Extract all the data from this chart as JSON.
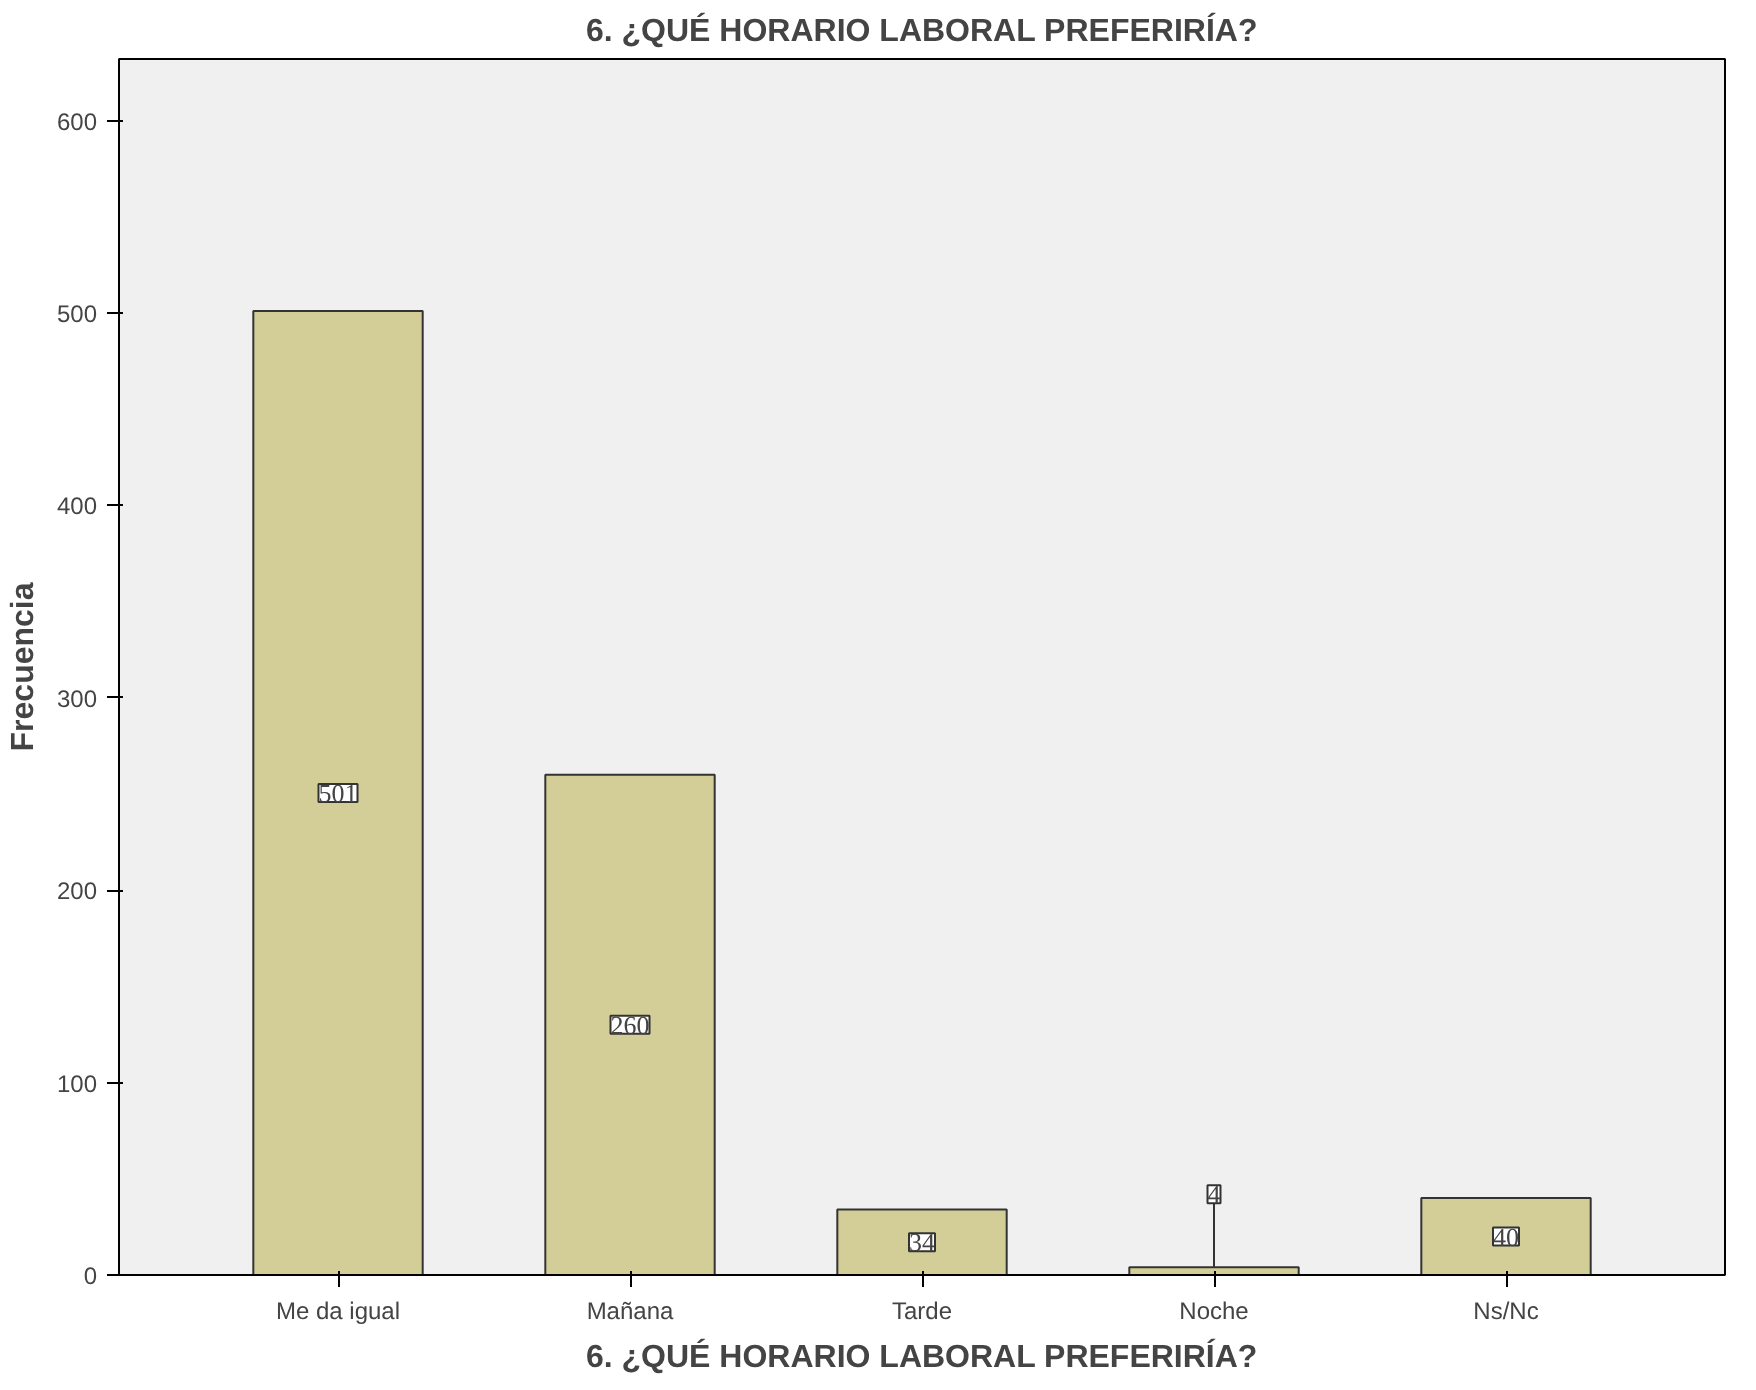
{
  "chart_data": {
    "type": "bar",
    "title": "6. ¿QUÉ HORARIO LABORAL PREFERIRÍA?",
    "xlabel": "6. ¿QUÉ HORARIO LABORAL PREFERIRÍA?",
    "ylabel": "Frecuencia",
    "categories": [
      "Me da igual",
      "Mañana",
      "Tarde",
      "Noche",
      "Ns/Nc"
    ],
    "values": [
      501,
      260,
      34,
      4,
      40
    ],
    "color": "#d3ce97",
    "ylim": [
      0,
      632
    ],
    "yticks": [
      0,
      100,
      200,
      300,
      400,
      500,
      600
    ],
    "grid": false,
    "data_labels": true
  }
}
